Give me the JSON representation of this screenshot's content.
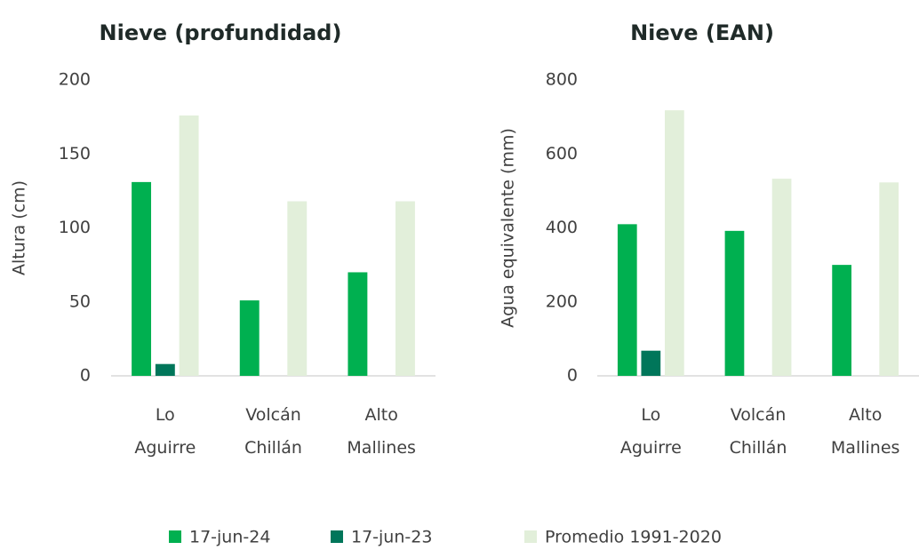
{
  "chart_data": [
    {
      "type": "bar",
      "title": "Nieve (profundidad)",
      "y_label": "Altura (cm)",
      "categories": [
        "Lo Aguirre",
        "Volcán Chillán",
        "Alto Mallines"
      ],
      "series": [
        {
          "name": "17-jun-24",
          "color": "#00b050",
          "values": [
            131,
            51,
            70
          ]
        },
        {
          "name": "17-jun-23",
          "color": "#00765a",
          "values": [
            8,
            null,
            null
          ]
        },
        {
          "name": "Promedio 1991-2020",
          "color": "#e2efda",
          "values": [
            176,
            118,
            118
          ]
        }
      ],
      "ylim": [
        0,
        200
      ],
      "yticks": [
        0,
        50,
        100,
        150,
        200
      ],
      "grid": false
    },
    {
      "type": "bar",
      "title": "Nieve (EAN)",
      "y_label": "Agua equivalente (mm)",
      "categories": [
        "Lo Aguirre",
        "Volcán Chillán",
        "Alto Mallines"
      ],
      "series": [
        {
          "color": "#00b050",
          "values": [
            410,
            392,
            300
          ]
        },
        {
          "color": "#00765a",
          "values": [
            68,
            null,
            null
          ]
        },
        {
          "color": "#e2efda",
          "values": [
            718,
            533,
            523
          ]
        }
      ],
      "ylim": [
        0,
        800
      ],
      "yticks": [
        0,
        200,
        400,
        600,
        800
      ],
      "grid": false
    }
  ]
}
